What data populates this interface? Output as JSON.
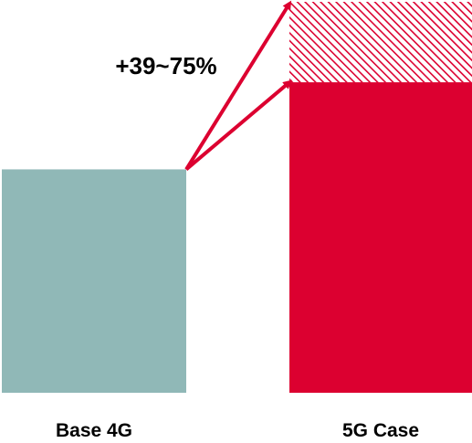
{
  "chart_data": {
    "type": "bar",
    "categories": [
      "Base 4G",
      "5G Case"
    ],
    "values": [
      1.0,
      1.75
    ],
    "range_low": [
      null,
      1.39
    ],
    "annotation": "+39~75%",
    "colors": {
      "base": "#90b8b7",
      "case": "#dc0030",
      "hatch": "#dc0030",
      "arrow": "#dc0030"
    },
    "ylim": [
      0,
      1.75
    ],
    "grid": false,
    "legend": "none"
  }
}
